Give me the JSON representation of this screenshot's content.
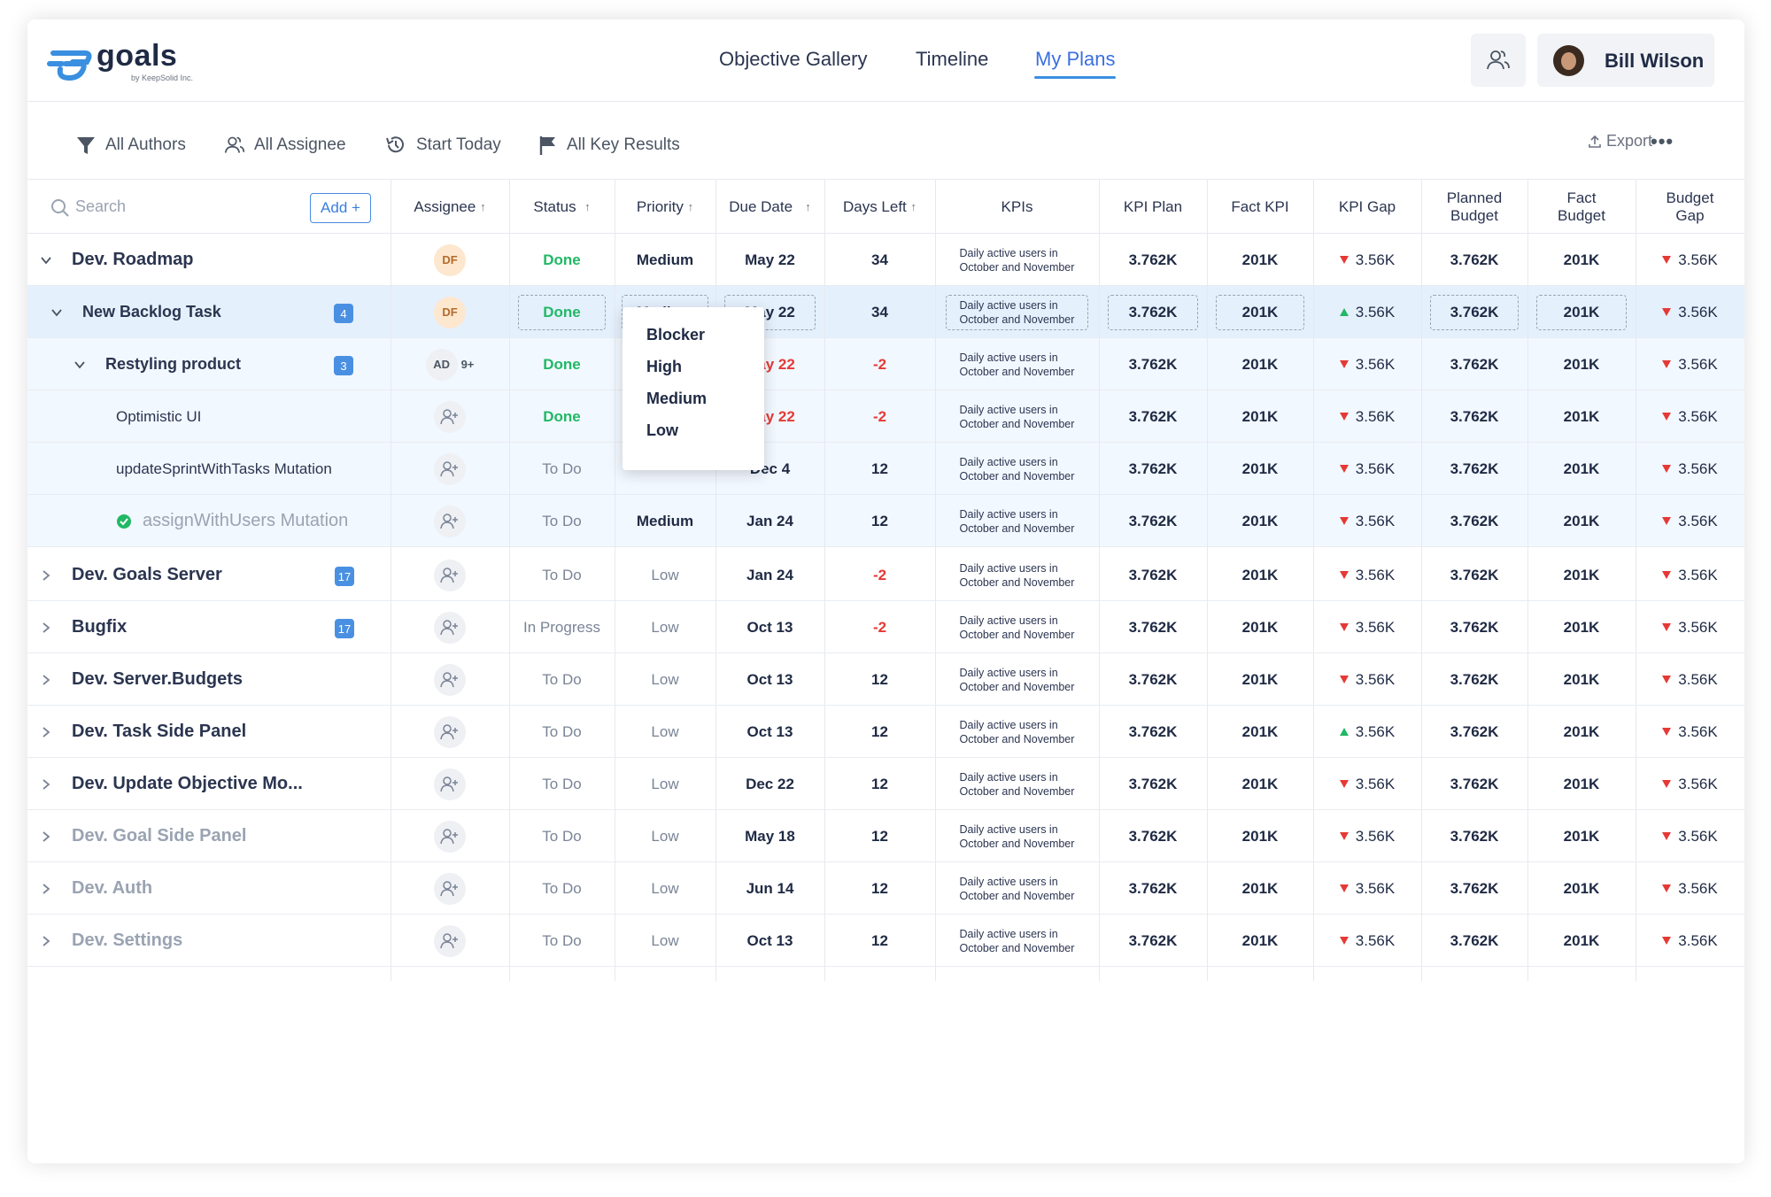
{
  "app": {
    "name": "goals",
    "subtitle": "by KeepSolid Inc."
  },
  "nav": {
    "items": [
      "Objective Gallery",
      "Timeline",
      "My Plans"
    ],
    "active": "My Plans"
  },
  "user": {
    "name": "Bill Wilson"
  },
  "filters": {
    "authors": "All Authors",
    "assignee": "All Assignee",
    "start": "Start Today",
    "key_results": "All Key Results"
  },
  "toolbar": {
    "export": "Export",
    "more": "•••"
  },
  "search": {
    "placeholder": "Search",
    "add_label": "Add +"
  },
  "columns": {
    "assignee": "Assignee",
    "status": "Status",
    "priority": "Priority",
    "due_date": "Due Date",
    "days_left": "Days Left",
    "kpis": "KPIs",
    "kpi_plan": "KPI Plan",
    "fact_kpi": "Fact KPI",
    "kpi_gap": "KPI Gap",
    "planned_budget_1": "Planned",
    "planned_budget_2": "Budget",
    "fact_budget_1": "Fact",
    "fact_budget_2": "Budget",
    "budget_gap_1": "Budget",
    "budget_gap_2": "Gap"
  },
  "priority_dropdown": {
    "options": [
      "Blocker",
      "High",
      "Medium",
      "Low"
    ]
  },
  "rows": [
    {
      "name": "Dev. Roadmap",
      "assignee": "DF",
      "status": "Done",
      "priority": "Medium",
      "due": "May 22",
      "days": "34",
      "kpi": "Daily active users in October and November",
      "kpi_plan": "3.762K",
      "fact_kpi": "201K",
      "kpi_gap": "3.56K",
      "kpi_trend": "down",
      "planned_budget": "3.762K",
      "fact_budget": "201K",
      "budget_gap": "3.56K"
    },
    {
      "name": "New Backlog Task",
      "badge": "4",
      "assignee": "DF",
      "status": "Done",
      "priority": "Medium",
      "due": "May 22",
      "days": "34",
      "kpi": "Daily active users in October and November",
      "kpi_plan": "3.762K",
      "fact_kpi": "201K",
      "kpi_gap": "3.56K",
      "kpi_trend": "up",
      "planned_budget": "3.762K",
      "fact_budget": "201K",
      "budget_gap": "3.56K"
    },
    {
      "name": "Restyling product",
      "badge": "3",
      "assignee": "AD",
      "assignee_more": "9+",
      "status": "Done",
      "priority": "",
      "due": "May 22",
      "days": "-2",
      "kpi": "Daily active users in October and November",
      "kpi_plan": "3.762K",
      "fact_kpi": "201K",
      "kpi_gap": "3.56K",
      "kpi_trend": "down",
      "planned_budget": "3.762K",
      "fact_budget": "201K",
      "budget_gap": "3.56K"
    },
    {
      "name": "Optimistic UI",
      "status": "Done",
      "priority": "",
      "due": "May 22",
      "days": "-2",
      "kpi": "Daily active users in October and November",
      "kpi_plan": "3.762K",
      "fact_kpi": "201K",
      "kpi_gap": "3.56K",
      "kpi_trend": "down",
      "planned_budget": "3.762K",
      "fact_budget": "201K",
      "budget_gap": "3.56K"
    },
    {
      "name": "updateSprintWithTasks Mutation",
      "status": "To Do",
      "priority": "",
      "due": "Dec 4",
      "days": "12",
      "kpi": "Daily active users in October and November",
      "kpi_plan": "3.762K",
      "fact_kpi": "201K",
      "kpi_gap": "3.56K",
      "kpi_trend": "down",
      "planned_budget": "3.762K",
      "fact_budget": "201K",
      "budget_gap": "3.56K"
    },
    {
      "name": "assignWithUsers Mutation",
      "status": "To Do",
      "priority": "Medium",
      "due": "Jan 24",
      "days": "12",
      "kpi": "Daily active users in October and November",
      "kpi_plan": "3.762K",
      "fact_kpi": "201K",
      "kpi_gap": "3.56K",
      "kpi_trend": "down",
      "planned_budget": "3.762K",
      "fact_budget": "201K",
      "budget_gap": "3.56K"
    },
    {
      "name": "Dev. Goals Server",
      "badge": "17",
      "status": "To Do",
      "priority": "Low",
      "due": "Jan 24",
      "days": "-2",
      "kpi": "Daily active users in October and November",
      "kpi_plan": "3.762K",
      "fact_kpi": "201K",
      "kpi_gap": "3.56K",
      "kpi_trend": "down",
      "planned_budget": "3.762K",
      "fact_budget": "201K",
      "budget_gap": "3.56K"
    },
    {
      "name": "Bugfix",
      "badge": "17",
      "status": "In Progress",
      "priority": "Low",
      "due": "Oct 13",
      "days": "-2",
      "kpi": "Daily active users in October and November",
      "kpi_plan": "3.762K",
      "fact_kpi": "201K",
      "kpi_gap": "3.56K",
      "kpi_trend": "down",
      "planned_budget": "3.762K",
      "fact_budget": "201K",
      "budget_gap": "3.56K"
    },
    {
      "name": "Dev. Server.Budgets",
      "status": "To Do",
      "priority": "Low",
      "due": "Oct 13",
      "days": "12",
      "kpi": "Daily active users in October and November",
      "kpi_plan": "3.762K",
      "fact_kpi": "201K",
      "kpi_gap": "3.56K",
      "kpi_trend": "down",
      "planned_budget": "3.762K",
      "fact_budget": "201K",
      "budget_gap": "3.56K"
    },
    {
      "name": "Dev. Task Side Panel",
      "status": "To Do",
      "priority": "Low",
      "due": "Oct 13",
      "days": "12",
      "kpi": "Daily active users in October and November",
      "kpi_plan": "3.762K",
      "fact_kpi": "201K",
      "kpi_gap": "3.56K",
      "kpi_trend": "up",
      "planned_budget": "3.762K",
      "fact_budget": "201K",
      "budget_gap": "3.56K"
    },
    {
      "name": "Dev. Update Objective Mo...",
      "status": "To Do",
      "priority": "Low",
      "due": "Dec 22",
      "days": "12",
      "kpi": "Daily active users in October and November",
      "kpi_plan": "3.762K",
      "fact_kpi": "201K",
      "kpi_gap": "3.56K",
      "kpi_trend": "down",
      "planned_budget": "3.762K",
      "fact_budget": "201K",
      "budget_gap": "3.56K"
    },
    {
      "name": "Dev. Goal Side Panel",
      "status": "To Do",
      "priority": "Low",
      "due": "May 18",
      "days": "12",
      "kpi": "Daily active users in October and November",
      "kpi_plan": "3.762K",
      "fact_kpi": "201K",
      "kpi_gap": "3.56K",
      "kpi_trend": "down",
      "planned_budget": "3.762K",
      "fact_budget": "201K",
      "budget_gap": "3.56K"
    },
    {
      "name": "Dev. Auth",
      "status": "To Do",
      "priority": "Low",
      "due": "Jun 14",
      "days": "12",
      "kpi": "Daily active users in October and November",
      "kpi_plan": "3.762K",
      "fact_kpi": "201K",
      "kpi_gap": "3.56K",
      "kpi_trend": "down",
      "planned_budget": "3.762K",
      "fact_budget": "201K",
      "budget_gap": "3.56K"
    },
    {
      "name": "Dev. Settings",
      "status": "To Do",
      "priority": "Low",
      "due": "Oct 13",
      "days": "12",
      "kpi": "Daily active users in October and November",
      "kpi_plan": "3.762K",
      "fact_kpi": "201K",
      "kpi_gap": "3.56K",
      "kpi_trend": "down",
      "planned_budget": "3.762K",
      "fact_budget": "201K",
      "budget_gap": "3.56K"
    }
  ],
  "colors": {
    "accent": "#3a8fe0",
    "done": "#21b865",
    "negative": "#e53935",
    "selected_row": "#e5f0fd"
  }
}
